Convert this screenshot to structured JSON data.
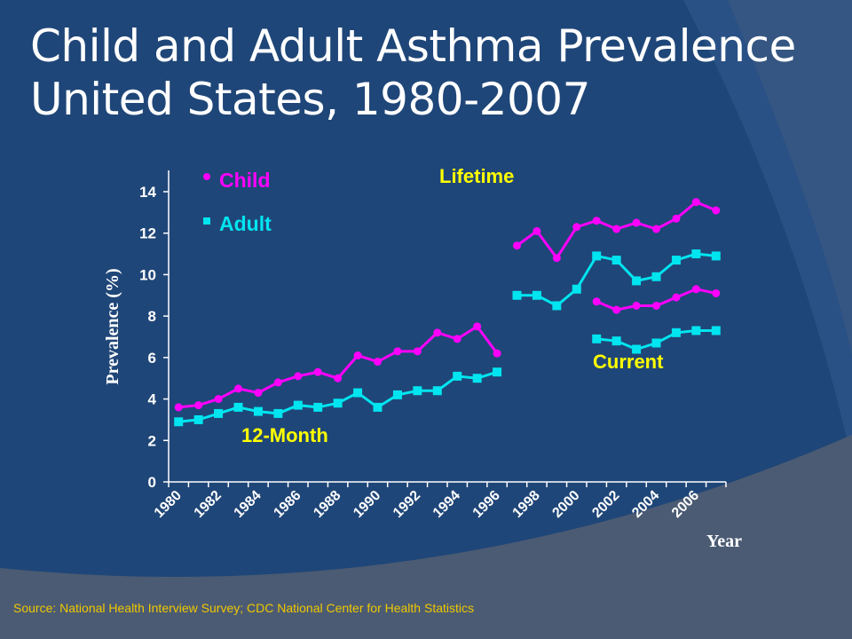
{
  "title_line1": "Child and Adult Asthma Prevalence",
  "title_line2": "United States, 1980-2007",
  "source": "Source:   National Health Interview Survey; CDC National Center for Health Statistics",
  "colors": {
    "background": "#1f4678",
    "child": "#ff00ff",
    "adult": "#00e5f0",
    "annotation": "#ffff00",
    "source": "#f0c800"
  },
  "chart_data": {
    "type": "line",
    "xlabel": "Year",
    "ylabel": "Prevalence (%)",
    "ylim": [
      0,
      14
    ],
    "yticks": [
      "0",
      "2",
      "4",
      "6",
      "8",
      "10",
      "12",
      "14"
    ],
    "xticks": [
      "1980",
      "1982",
      "1984",
      "1986",
      "1988",
      "1990",
      "1992",
      "1994",
      "1996",
      "1998",
      "2000",
      "2002",
      "2004",
      "2006"
    ],
    "xlim": [
      1980,
      2007
    ],
    "legend": [
      {
        "name": "Child",
        "marker": "circle"
      },
      {
        "name": "Adult",
        "marker": "square"
      }
    ],
    "legend_placement": "top-left",
    "annotations": [
      "Lifetime",
      "Current",
      "12-Month"
    ],
    "series": [
      {
        "name": "Child",
        "group": "12-Month",
        "x": [
          1980,
          1981,
          1982,
          1983,
          1984,
          1985,
          1986,
          1987,
          1988,
          1989,
          1990,
          1991,
          1992,
          1993,
          1994,
          1995,
          1996
        ],
        "values": [
          3.6,
          3.7,
          4.0,
          4.5,
          4.3,
          4.8,
          5.1,
          5.3,
          5.0,
          6.1,
          5.8,
          6.3,
          6.3,
          7.2,
          6.9,
          7.5,
          6.2
        ]
      },
      {
        "name": "Adult",
        "group": "12-Month",
        "x": [
          1980,
          1981,
          1982,
          1983,
          1984,
          1985,
          1986,
          1987,
          1988,
          1989,
          1990,
          1991,
          1992,
          1993,
          1994,
          1995,
          1996
        ],
        "values": [
          2.9,
          3.0,
          3.3,
          3.6,
          3.4,
          3.3,
          3.7,
          3.6,
          3.8,
          4.3,
          3.6,
          4.2,
          4.4,
          4.4,
          5.1,
          5.0,
          5.3
        ]
      },
      {
        "name": "Child",
        "group": "Lifetime",
        "x": [
          1997,
          1998,
          1999,
          2000,
          2001,
          2002,
          2003,
          2004,
          2005,
          2006,
          2007
        ],
        "values": [
          11.4,
          12.1,
          10.8,
          12.3,
          12.6,
          12.2,
          12.5,
          12.2,
          12.7,
          13.5,
          13.1
        ]
      },
      {
        "name": "Adult",
        "group": "Lifetime",
        "x": [
          1997,
          1998,
          1999,
          2000,
          2001,
          2002,
          2003,
          2004,
          2005,
          2006,
          2007
        ],
        "values": [
          9.0,
          9.0,
          8.5,
          9.3,
          10.9,
          10.7,
          9.7,
          9.9,
          10.7,
          11.0,
          10.9
        ]
      },
      {
        "name": "Child",
        "group": "Current",
        "x": [
          2001,
          2002,
          2003,
          2004,
          2005,
          2006,
          2007
        ],
        "values": [
          8.7,
          8.3,
          8.5,
          8.5,
          8.9,
          9.3,
          9.1
        ]
      },
      {
        "name": "Adult",
        "group": "Current",
        "x": [
          2001,
          2002,
          2003,
          2004,
          2005,
          2006,
          2007
        ],
        "values": [
          6.9,
          6.8,
          6.4,
          6.7,
          7.2,
          7.3,
          7.3
        ]
      }
    ]
  }
}
